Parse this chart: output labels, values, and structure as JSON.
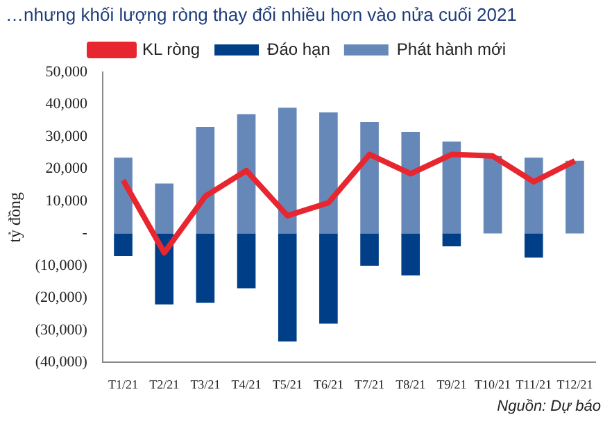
{
  "chart_data": {
    "type": "bar",
    "title": "…nhưng khối lượng ròng thay đổi nhiều hơn vào nửa cuối 2021",
    "ylabel": "tỷ đồng",
    "stacked": true,
    "legend": "top",
    "grid": false,
    "categories": [
      "T1/21",
      "T2/21",
      "T3/21",
      "T4/21",
      "T5/21",
      "T6/21",
      "T7/21",
      "T8/21",
      "T9/21",
      "T10/21",
      "T11/21",
      "T12/21"
    ],
    "series": [
      {
        "name": "Đáo hạn",
        "color": "#003f87",
        "values": [
          -7000,
          -22000,
          -21500,
          -17000,
          -33500,
          -28000,
          -10000,
          -13000,
          -4000,
          null,
          -7500,
          null
        ]
      },
      {
        "name": "Phát hành mới",
        "color": "#6688b8",
        "values": [
          23500,
          15500,
          33000,
          37000,
          39000,
          37500,
          34500,
          31500,
          28500,
          24000,
          23500,
          22500
        ]
      },
      {
        "name": "KL ròng",
        "type": "line",
        "color": "#e8262f",
        "values": [
          16500,
          -6000,
          11500,
          19500,
          5500,
          9500,
          24500,
          18500,
          24500,
          24000,
          16000,
          22500
        ]
      }
    ],
    "ylim": [
      -40000,
      50000
    ],
    "yticks": [
      {
        "value": -40000,
        "label": "(40,000)"
      },
      {
        "value": -30000,
        "label": "(30,000)"
      },
      {
        "value": -20000,
        "label": "(20,000)"
      },
      {
        "value": -10000,
        "label": "(10,000)"
      },
      {
        "value": 0,
        "label": "-"
      },
      {
        "value": 10000,
        "label": "10,000"
      },
      {
        "value": 20000,
        "label": "20,000"
      },
      {
        "value": 30000,
        "label": "30,000"
      },
      {
        "value": 40000,
        "label": "40,000"
      },
      {
        "value": 50000,
        "label": "50,000"
      }
    ],
    "annotations": [
      "Nguồn: Dự báo"
    ]
  }
}
